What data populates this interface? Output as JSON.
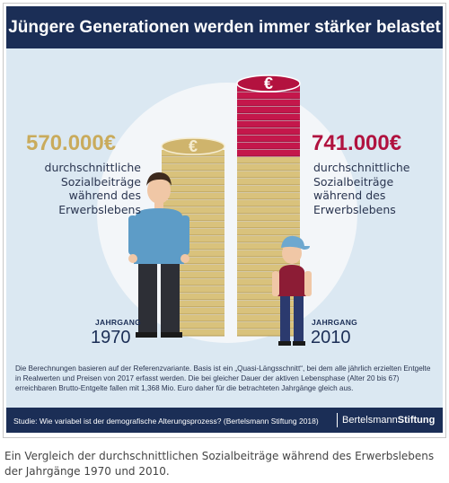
{
  "header": {
    "title": "Jüngere Generationen werden immer stärker belastet"
  },
  "left": {
    "amount": "570.000€",
    "description": "durchschnittliche Sozialbeiträge während des Erwerbslebens",
    "jahrgang_label": "JAHRGANG",
    "year": "1970",
    "coin_symbol": "€"
  },
  "right": {
    "amount": "741.000€",
    "description": "durchschnittliche Sozialbeiträge während des Erwerbslebens",
    "jahrgang_label": "JAHRGANG",
    "year": "2010",
    "coin_symbol": "€"
  },
  "notes": "Die Berechnungen basieren auf der Referenzvariante. Basis ist ein „Quasi-Längsschnitt“, bei dem alle jährlich erzielten Entgelte in Realwerten und Preisen von 2017 erfasst werden. Die bei gleicher Dauer der aktiven Lebensphase (Alter 20 bis 67) erreichbaren Brutto-Entgelte fallen mit 1,368 Mio. Euro daher für die betrachteten Jahrgänge gleich aus.",
  "footer": {
    "study": "Studie: Wie variabel ist der demografische Alterungsprozess? (Bertelsmann Stiftung  2018)",
    "brand_part1": "Bertelsmann",
    "brand_part2": "Stiftung"
  },
  "caption": "Ein Vergleich der durchschnittlichen Sozialbeiträge während des Erwerbslebens der Jahrgänge 1970 und 2010.",
  "colors": {
    "navy": "#1b2e56",
    "gold": "#d9c27c",
    "crimson": "#c4174b",
    "panel": "#dbe8f2"
  }
}
